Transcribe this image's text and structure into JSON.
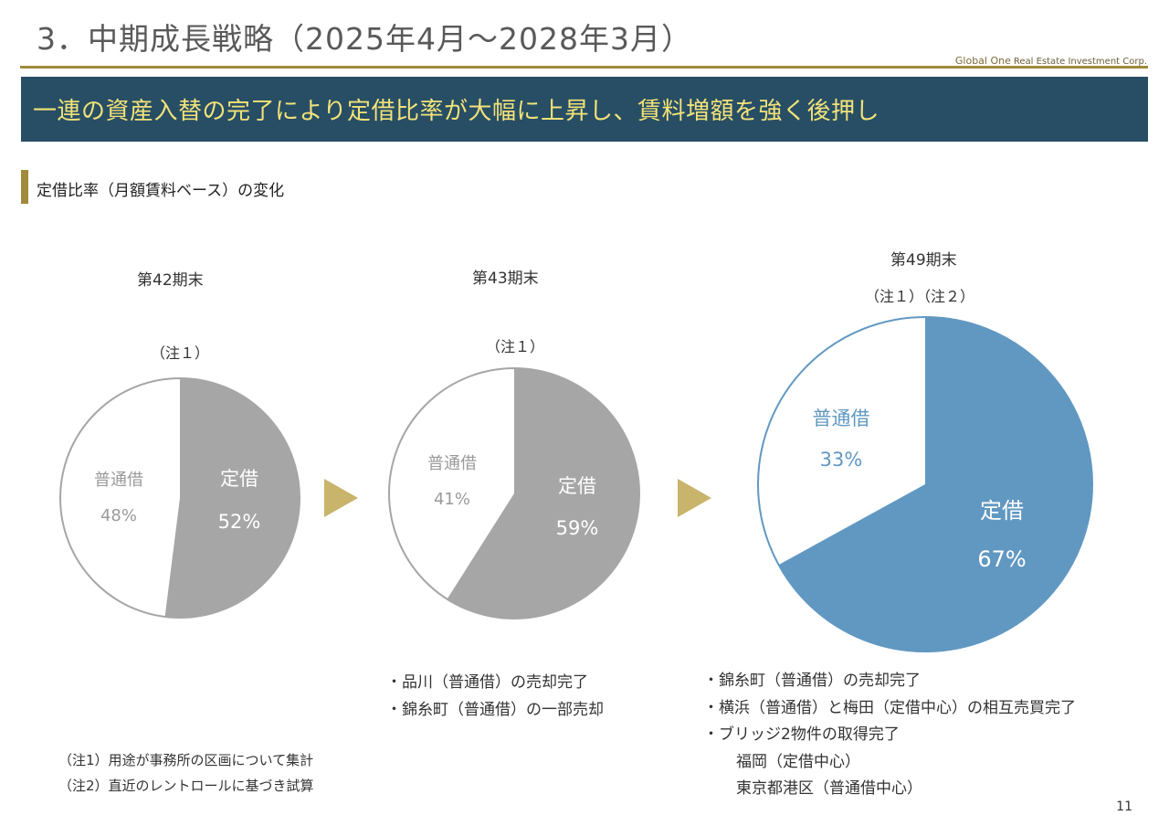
{
  "header": {
    "title": "3．中期成長戦略（2025年4月～2028年3月）",
    "logo_brand": "Global One",
    "logo_sub": "Real Estate Investment Corp."
  },
  "banner": {
    "text": "一連の資産入替の完了により定借比率が大幅に上昇し、賃料増額を強く後押し"
  },
  "section": {
    "label": "定借比率（月額賃料ベース）の変化"
  },
  "charts": {
    "c42": {
      "period": "第42期末",
      "note": "（注１）",
      "fixed_label": "定借",
      "fixed_pct": "52%",
      "normal_label": "普通借",
      "normal_pct": "48%"
    },
    "c43": {
      "period": "第43期末",
      "note": "（注１）",
      "fixed_label": "定借",
      "fixed_pct": "59%",
      "normal_label": "普通借",
      "normal_pct": "41%"
    },
    "c49": {
      "period": "第49期末",
      "note": "（注１）（注２）",
      "fixed_label": "定借",
      "fixed_pct": "67%",
      "normal_label": "普通借",
      "normal_pct": "33%"
    }
  },
  "chart_data": [
    {
      "type": "pie",
      "title": "第42期末",
      "labels": [
        "定借",
        "普通借"
      ],
      "values": [
        52,
        48
      ],
      "colors": [
        "#a6a6a6",
        "#ffffff"
      ]
    },
    {
      "type": "pie",
      "title": "第43期末",
      "labels": [
        "定借",
        "普通借"
      ],
      "values": [
        59,
        41
      ],
      "colors": [
        "#a6a6a6",
        "#ffffff"
      ]
    },
    {
      "type": "pie",
      "title": "第49期末",
      "labels": [
        "定借",
        "普通借"
      ],
      "values": [
        67,
        33
      ],
      "colors": [
        "#6198c2",
        "#ffffff"
      ]
    }
  ],
  "bullets43": [
    "・品川（普通借）の売却完了",
    "・錦糸町（普通借）の一部売却"
  ],
  "bullets49": {
    "line1": "・錦糸町（普通借）の売却完了",
    "line2": "・横浜（普通借）と梅田（定借中心）の相互売買完了",
    "line3": "・ブリッジ2物件の取得完了",
    "sub1": "福岡（定借中心）",
    "sub2": "東京都港区（普通借中心）"
  },
  "footnotes": [
    "（注1）用途が事務所の区画について集計",
    "（注2）直近のレントロールに基づき試算"
  ],
  "page_number": "11",
  "colors": {
    "banner_bg": "#274e64",
    "banner_text": "#f2e27a",
    "accent_gold": "#a08a3c",
    "arrow": "#c8b46a",
    "pie_gray": "#a6a6a6",
    "pie_blue": "#6198c2"
  }
}
